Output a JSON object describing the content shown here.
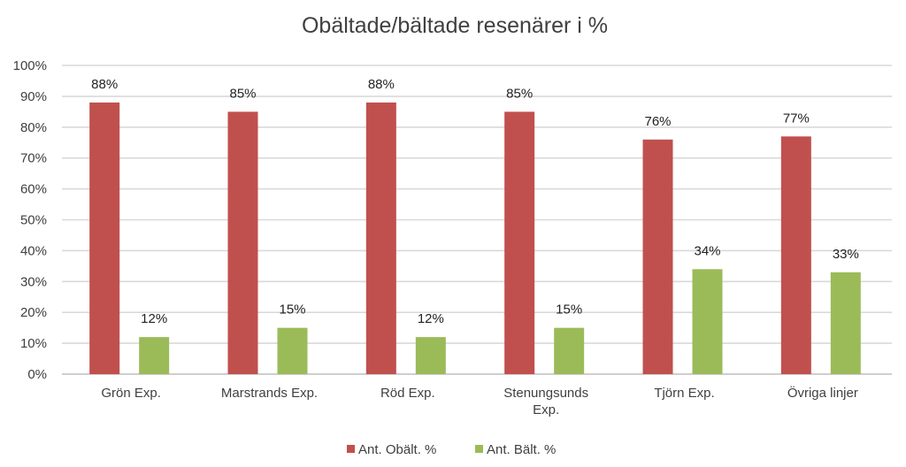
{
  "chart_data": {
    "type": "bar",
    "title": "Obältade/bältade resenärer i %",
    "categories": [
      [
        "Grön Exp."
      ],
      [
        "Marstrands Exp."
      ],
      [
        "Röd Exp."
      ],
      [
        "Stenungsunds",
        "Exp."
      ],
      [
        "Tjörn Exp."
      ],
      [
        "Övriga linjer"
      ]
    ],
    "series": [
      {
        "name": "Ant. Obält. %",
        "color": "#c0504d",
        "values": [
          88,
          85,
          88,
          85,
          76,
          77
        ],
        "labels": [
          "88%",
          "85%",
          "88%",
          "85%",
          "76%",
          "77%"
        ]
      },
      {
        "name": "Ant. Bält. %",
        "color": "#9bbb59",
        "values": [
          12,
          15,
          12,
          15,
          34,
          33
        ],
        "labels": [
          "12%",
          "15%",
          "12%",
          "15%",
          "34%",
          "33%"
        ]
      }
    ],
    "y_ticks": [
      0,
      10,
      20,
      30,
      40,
      50,
      60,
      70,
      80,
      90,
      100
    ],
    "y_tick_labels": [
      "0%",
      "10%",
      "20%",
      "30%",
      "40%",
      "50%",
      "60%",
      "70%",
      "80%",
      "90%",
      "100%"
    ],
    "ylim": [
      0,
      100
    ],
    "xlabel": "",
    "ylabel": "",
    "grid": true,
    "legend_position": "bottom"
  }
}
